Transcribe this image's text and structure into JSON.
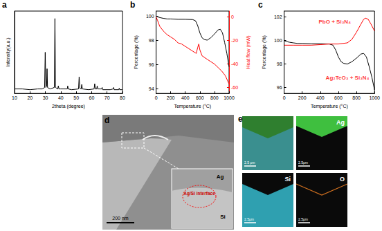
{
  "chart_data": [
    {
      "panel": "a",
      "type": "line",
      "xlabel": "2theta (degree)",
      "ylabel": "Intensity(a.u.)",
      "xlim": [
        10,
        80
      ],
      "xticks": [
        10,
        20,
        30,
        40,
        50,
        60,
        70,
        80
      ],
      "ylim": [
        0,
        1.1
      ],
      "tick_labels": "x",
      "grid": false,
      "series": [
        {
          "color": "#000000",
          "x": [
            10,
            15,
            20,
            25,
            28,
            29.5,
            29.9,
            30.3,
            30.8,
            31.1,
            31.4,
            33,
            35.8,
            36.2,
            36.6,
            38,
            38.4,
            38.8,
            40,
            44.2,
            44.5,
            44.8,
            47,
            51.5,
            51.9,
            52.3,
            53.2,
            53.6,
            54,
            58,
            61.6,
            62,
            62.4,
            63.3,
            63.6,
            64,
            66.5,
            66.8,
            67.2,
            72,
            74,
            74.3,
            74.6,
            77.6,
            77.9,
            78.2,
            80
          ],
          "values": [
            0.06,
            0.06,
            0.05,
            0.06,
            0.06,
            0.08,
            0.55,
            0.08,
            0.1,
            0.33,
            0.08,
            0.06,
            0.08,
            1.0,
            0.08,
            0.06,
            0.1,
            0.06,
            0.06,
            0.06,
            0.1,
            0.06,
            0.05,
            0.06,
            0.22,
            0.07,
            0.06,
            0.12,
            0.06,
            0.05,
            0.06,
            0.13,
            0.06,
            0.06,
            0.1,
            0.06,
            0.06,
            0.08,
            0.05,
            0.05,
            0.06,
            0.08,
            0.05,
            0.05,
            0.07,
            0.05,
            0.05
          ]
        }
      ]
    },
    {
      "panel": "b",
      "type": "line",
      "xlabel": "Temperature (°C)",
      "ylabel": "Percentage (%)",
      "y2label": "Heat flow (mW)",
      "xlim": [
        0,
        1000
      ],
      "xticks": [
        0,
        200,
        400,
        600,
        800,
        1000
      ],
      "ylim": [
        93.6,
        100.4
      ],
      "yticks": [
        94,
        96,
        98,
        100
      ],
      "y2lim": [
        -65,
        5
      ],
      "y2ticks": [
        0,
        -20,
        -40,
        -60
      ],
      "grid": false,
      "series": [
        {
          "color": "#000000",
          "x": [
            0,
            30,
            60,
            100,
            150,
            200,
            300,
            400,
            500,
            540,
            570,
            600,
            630,
            660,
            700,
            750,
            800,
            850,
            880,
            910,
            940,
            970,
            1000
          ],
          "values": [
            100,
            99.9,
            99.85,
            99.8,
            99.75,
            99.75,
            99.72,
            99.72,
            99.7,
            99.6,
            99.2,
            98.6,
            98.2,
            98.05,
            98.0,
            98.2,
            98.5,
            98.85,
            98.9,
            98.6,
            97.8,
            96.9,
            95.8
          ]
        },
        {
          "color": "#ff0000",
          "axis": "y2",
          "x": [
            0,
            20,
            50,
            100,
            150,
            200,
            250,
            300,
            350,
            400,
            450,
            500,
            550,
            570,
            585,
            600,
            630,
            700,
            750,
            800,
            850,
            900,
            950,
            1000
          ],
          "values": [
            0,
            -3,
            -8,
            -12,
            -15,
            -17,
            -19,
            -22,
            -23,
            -25,
            -27,
            -29,
            -31,
            -26,
            -23,
            -28,
            -33,
            -36,
            -38,
            -40,
            -43,
            -46,
            -50,
            -57
          ]
        }
      ]
    },
    {
      "panel": "c",
      "type": "line",
      "xlabel": "Temperature (°C)",
      "ylabel": "Percentage (%)",
      "xlim": [
        0,
        1000
      ],
      "xticks": [
        0,
        200,
        400,
        600,
        800,
        1000
      ],
      "ylim": [
        95.5,
        102.5
      ],
      "yticks": [
        96,
        98,
        100,
        102
      ],
      "grid": false,
      "series": [
        {
          "color": "#000000",
          "x": [
            0,
            30,
            60,
            100,
            150,
            200,
            300,
            400,
            500,
            540,
            570,
            600,
            630,
            660,
            700,
            750,
            800,
            850,
            880,
            910,
            940,
            970,
            1000
          ],
          "values": [
            100,
            99.9,
            99.85,
            99.8,
            99.75,
            99.75,
            99.72,
            99.72,
            99.7,
            99.6,
            99.2,
            98.6,
            98.2,
            98.05,
            98.0,
            98.2,
            98.5,
            98.85,
            98.9,
            98.6,
            97.8,
            96.9,
            95.8
          ]
        },
        {
          "color": "#ff0000",
          "x": [
            0,
            100,
            200,
            300,
            400,
            500,
            600,
            700,
            750,
            800,
            850,
            880,
            900,
            930,
            960,
            1000
          ],
          "values": [
            99.6,
            99.6,
            99.6,
            99.6,
            99.65,
            99.7,
            99.7,
            99.8,
            100.1,
            100.7,
            101.4,
            101.8,
            101.9,
            101.8,
            101.4,
            100.8
          ]
        }
      ],
      "annotations": [
        {
          "text": "PbO + Si₃N₄",
          "x": 560,
          "y": 101.6,
          "color": "#ff0000"
        },
        {
          "text": "Ag₂TeO₃ + Si₃N₄",
          "x": 700,
          "y": 96.8,
          "color": "#ff0000"
        }
      ]
    }
  ],
  "micrographs": [
    {
      "panel": "d",
      "scale_bar": "200 nm",
      "inset_labels": [
        "Ag",
        "Ag/Si interface",
        "Si"
      ]
    },
    {
      "panel": "e",
      "scale_bars": [
        "2.5 μm",
        "2.5μm",
        "2.5μm",
        "2.5μm"
      ],
      "map_labels": [
        "Ag",
        "Si",
        "O"
      ]
    }
  ]
}
